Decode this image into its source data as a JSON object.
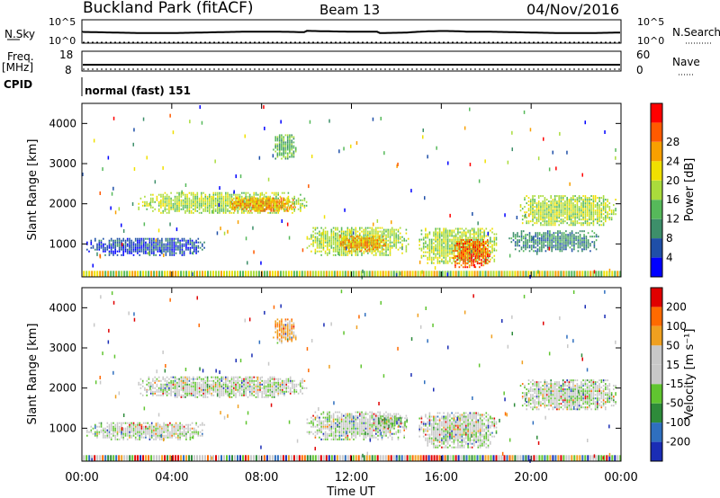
{
  "header": {
    "title": "Buckland Park (fitACF)",
    "beam": "Beam 13",
    "date": "04/Nov/2016"
  },
  "top_panels": {
    "nsky": {
      "label": "N.Sky",
      "ticks": [
        "10^5",
        "10^0"
      ]
    },
    "nsearch": {
      "label": "N.Search",
      "ticks": [
        "10^5",
        "10^0"
      ]
    },
    "freq": {
      "label_line1": "Freq.",
      "label_line2": "[MHz]",
      "ticks": [
        "18",
        "8"
      ]
    },
    "nave": {
      "label": "Nave",
      "ticks": [
        "60",
        "0"
      ]
    },
    "cpid": {
      "label": "CPID",
      "value": "normal (fast) 151"
    }
  },
  "chart_data": [
    {
      "type": "heatmap",
      "panel": "power",
      "ylabel": "Slant Range [km]",
      "xlabel": "Time UT",
      "x_ticks": [
        "00:00",
        "04:00",
        "08:00",
        "12:00",
        "16:00",
        "20:00",
        "00:00"
      ],
      "x_range_hours": [
        0,
        24
      ],
      "y_ticks": [
        "1000",
        "2000",
        "3000",
        "4000"
      ],
      "ylim": [
        180,
        4500
      ],
      "colorbar": {
        "label": "Power [dB]",
        "ticks": [
          "4",
          "8",
          "12",
          "16",
          "20",
          "24",
          "28"
        ],
        "colors": [
          "#0000ff",
          "#1f4fa8",
          "#3d8f6a",
          "#56b95a",
          "#aadc3c",
          "#f0e000",
          "#f8a000",
          "#ff5a00",
          "#ff0000"
        ]
      },
      "regions": [
        {
          "t": [
            0.2,
            5.5
          ],
          "r": [
            700,
            1150
          ],
          "level": 1
        },
        {
          "t": [
            2.5,
            10.0
          ],
          "r": [
            1750,
            2250
          ],
          "level": 4
        },
        {
          "t": [
            6.5,
            9.5
          ],
          "r": [
            1800,
            2150
          ],
          "level": 6
        },
        {
          "t": [
            8.5,
            9.5
          ],
          "r": [
            3100,
            3700
          ],
          "level": 3
        },
        {
          "t": [
            10.0,
            14.5
          ],
          "r": [
            700,
            1400
          ],
          "level": 4
        },
        {
          "t": [
            11.5,
            13.5
          ],
          "r": [
            800,
            1200
          ],
          "level": 6
        },
        {
          "t": [
            15.0,
            18.5
          ],
          "r": [
            500,
            1400
          ],
          "level": 4
        },
        {
          "t": [
            16.5,
            18.2
          ],
          "r": [
            400,
            1100
          ],
          "level": 7
        },
        {
          "t": [
            19.0,
            23.0
          ],
          "r": [
            800,
            1300
          ],
          "level": 2
        },
        {
          "t": [
            19.5,
            23.8
          ],
          "r": [
            1450,
            2200
          ],
          "level": 4
        }
      ]
    },
    {
      "type": "heatmap",
      "panel": "velocity",
      "ylabel": "Slant Range [km]",
      "xlabel": "Time UT",
      "x_ticks": [
        "00:00",
        "04:00",
        "08:00",
        "12:00",
        "16:00",
        "20:00",
        "00:00"
      ],
      "x_range_hours": [
        0,
        24
      ],
      "y_ticks": [
        "1000",
        "2000",
        "3000",
        "4000"
      ],
      "ylim": [
        180,
        4500
      ],
      "colorbar": {
        "label": "Velocity [m s⁻¹]",
        "ticks": [
          "200",
          "100",
          "50",
          "15",
          "-15",
          "-50",
          "-100",
          "-200"
        ],
        "colors": [
          "#1a2db5",
          "#2f6fbf",
          "#2e8b3a",
          "#60c530",
          "#c8c8c8",
          "#c8c8c8",
          "#f0a020",
          "#ff6a00",
          "#e00000"
        ]
      },
      "regions": [
        {
          "t": [
            0.2,
            5.5
          ],
          "r": [
            700,
            1150
          ],
          "level": 4
        },
        {
          "t": [
            2.5,
            10.0
          ],
          "r": [
            1750,
            2250
          ],
          "level": 4
        },
        {
          "t": [
            8.5,
            9.5
          ],
          "r": [
            3100,
            3700
          ],
          "level": 6
        },
        {
          "t": [
            10.0,
            14.5
          ],
          "r": [
            700,
            1400
          ],
          "level": 4
        },
        {
          "t": [
            13.0,
            14.5
          ],
          "r": [
            1000,
            1300
          ],
          "level": 3
        },
        {
          "t": [
            15.0,
            18.5
          ],
          "r": [
            500,
            1400
          ],
          "level": 4
        },
        {
          "t": [
            19.5,
            23.8
          ],
          "r": [
            1450,
            2200
          ],
          "level": 4
        }
      ]
    }
  ],
  "colors": {
    "axis": "#000000",
    "nsky_line": "#000000"
  }
}
